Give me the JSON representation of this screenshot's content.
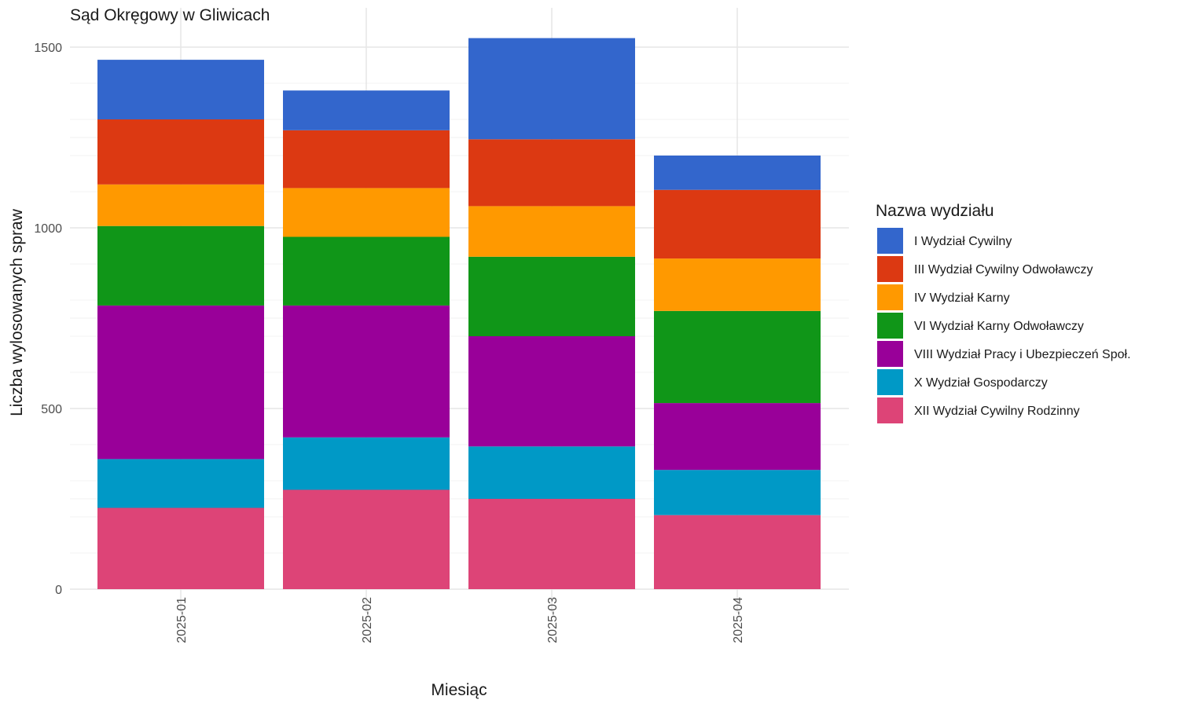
{
  "chart_data": {
    "type": "bar",
    "stacked": true,
    "title": "Sąd Okręgowy w Gliwicach",
    "xlabel": "Miesiąc",
    "ylabel": "Liczba wylosowanych spraw",
    "ylim": [
      0,
      1550
    ],
    "yticks": [
      0,
      500,
      1000,
      1500
    ],
    "grid": true,
    "legend": {
      "title": "Nazwa wydziału",
      "position": "right"
    },
    "categories": [
      "2025-01",
      "2025-02",
      "2025-03",
      "2025-04"
    ],
    "series": [
      {
        "name": "I Wydział Cywilny",
        "color": "#3366CC",
        "values": [
          165,
          110,
          280,
          95
        ]
      },
      {
        "name": "III Wydział Cywilny Odwoławczy",
        "color": "#DC3912",
        "values": [
          180,
          160,
          185,
          190
        ]
      },
      {
        "name": "IV Wydział Karny",
        "color": "#FF9900",
        "values": [
          115,
          135,
          140,
          145
        ]
      },
      {
        "name": "VI Wydział Karny Odwoławczy",
        "color": "#109618",
        "values": [
          220,
          190,
          220,
          255
        ]
      },
      {
        "name": "VIII Wydział Pracy i Ubezpieczeń Społ.",
        "color": "#990099",
        "values": [
          425,
          365,
          305,
          185
        ]
      },
      {
        "name": "X Wydział Gospodarczy",
        "color": "#0099C6",
        "values": [
          135,
          145,
          145,
          125
        ]
      },
      {
        "name": "XII Wydział Cywilny Rodzinny",
        "color": "#DD4477",
        "values": [
          225,
          275,
          250,
          205
        ]
      }
    ]
  }
}
